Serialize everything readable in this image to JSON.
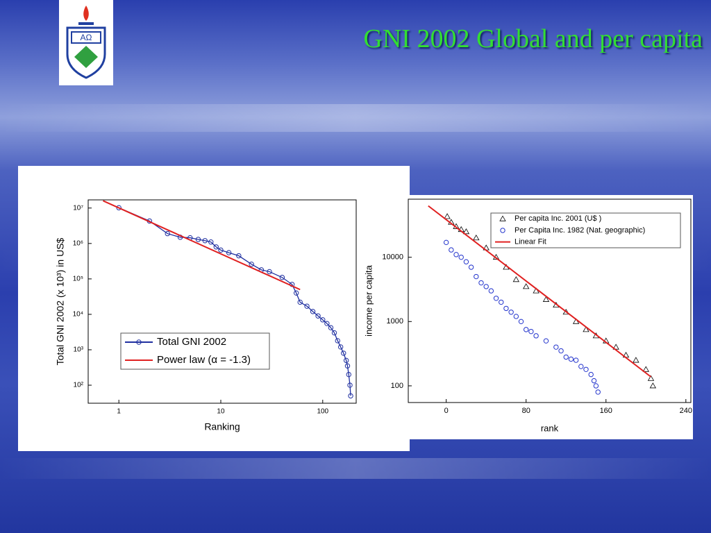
{
  "slide": {
    "title": "GNI 2002 Global and per capita"
  },
  "chart_data": [
    {
      "type": "line",
      "x_label": "Ranking",
      "y_label": "Total GNI 2002 (x 10³) in US$",
      "xlog": true,
      "ylog": true,
      "xlim": [
        0.5,
        213
      ],
      "ylim": [
        31,
        17000000
      ],
      "xticks": [
        1,
        10,
        100
      ],
      "yticks": [
        {
          "value": 100,
          "label": "10²"
        },
        {
          "value": 1000,
          "label": "10³"
        },
        {
          "value": 10000,
          "label": "10⁴"
        },
        {
          "value": 100000,
          "label": "10⁵"
        },
        {
          "value": 1000000,
          "label": "10⁶"
        },
        {
          "value": 10000000,
          "label": "10⁷"
        }
      ],
      "legend": "bottom-left",
      "series": [
        {
          "name": "Total GNI 2002",
          "color": "#1f2fa0",
          "marker": "circle",
          "line": true,
          "x": [
            1,
            2,
            3,
            4,
            5,
            6,
            7,
            8,
            9,
            10,
            12,
            15,
            20,
            25,
            30,
            40,
            50,
            55,
            60,
            70,
            80,
            90,
            100,
            110,
            120,
            130,
            140,
            150,
            160,
            170,
            175,
            180,
            185,
            188
          ],
          "values": [
            10200000,
            4300000,
            1900000,
            1500000,
            1450000,
            1300000,
            1200000,
            1100000,
            800000,
            650000,
            550000,
            450000,
            260000,
            180000,
            160000,
            110000,
            70000,
            40000,
            22000,
            17000,
            12000,
            9000,
            7000,
            5500,
            4200,
            3000,
            1800,
            1200,
            800,
            500,
            350,
            200,
            100,
            50
          ]
        },
        {
          "name": "Power law (α = -1.3)",
          "color": "#e02020",
          "marker": null,
          "line": true,
          "x": [
            0.7,
            60
          ],
          "values": [
            16000000,
            50000
          ]
        }
      ]
    },
    {
      "type": "scatter",
      "x_label": "rank",
      "y_label": "income per capita",
      "xlog": false,
      "ylog": true,
      "xlim": [
        -38,
        245
      ],
      "ylim": [
        55,
        80000
      ],
      "xticks": [
        0,
        80,
        160,
        240
      ],
      "yticks": [
        100,
        1000,
        10000
      ],
      "legend": "top-right",
      "series": [
        {
          "name": "Per capita Inc. 2001 (U$ )",
          "color": "#000000",
          "marker": "triangle",
          "line": false,
          "x": [
            1,
            5,
            10,
            15,
            20,
            30,
            40,
            50,
            60,
            70,
            80,
            90,
            100,
            110,
            120,
            130,
            140,
            150,
            160,
            170,
            180,
            190,
            200,
            205,
            207
          ],
          "values": [
            43000,
            35000,
            30000,
            27000,
            25000,
            20000,
            14000,
            10000,
            7000,
            4500,
            3500,
            3000,
            2200,
            1800,
            1400,
            1000,
            750,
            600,
            500,
            400,
            300,
            250,
            180,
            130,
            100
          ]
        },
        {
          "name": "Per Capita Inc. 1982 (Nat. geographic)",
          "color": "#2233cc",
          "marker": "circle",
          "line": false,
          "x": [
            0,
            5,
            10,
            15,
            20,
            25,
            30,
            35,
            40,
            45,
            50,
            55,
            60,
            65,
            70,
            75,
            80,
            85,
            90,
            100,
            110,
            115,
            120,
            125,
            130,
            135,
            140,
            145,
            148,
            150,
            152
          ],
          "values": [
            17000,
            13000,
            11000,
            10000,
            8500,
            7000,
            5000,
            4000,
            3500,
            3000,
            2300,
            2000,
            1600,
            1400,
            1200,
            1000,
            750,
            700,
            600,
            500,
            400,
            350,
            280,
            260,
            250,
            200,
            180,
            150,
            120,
            100,
            80
          ]
        },
        {
          "name": "Linear Fit",
          "color": "#e02020",
          "marker": null,
          "line": true,
          "x": [
            -18,
            205
          ],
          "values": [
            63000,
            138
          ]
        }
      ]
    }
  ]
}
